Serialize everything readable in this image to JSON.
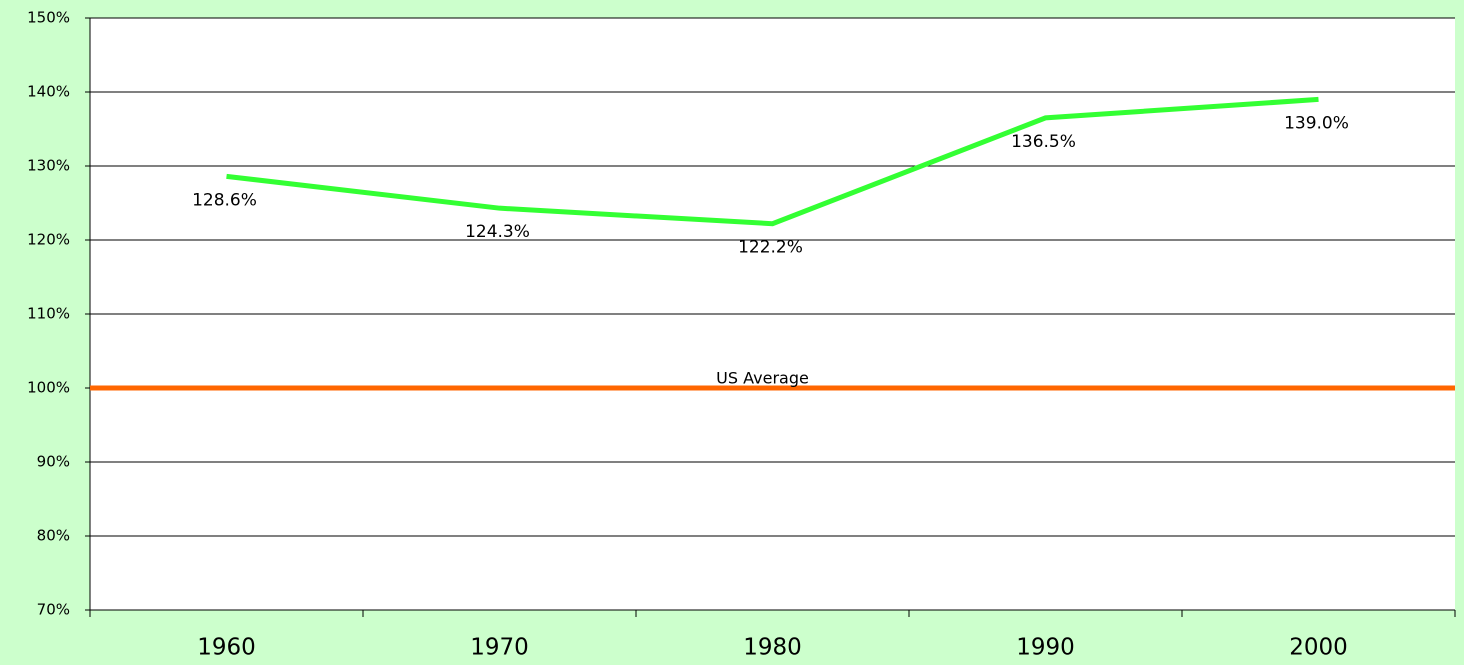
{
  "chart_data": {
    "type": "line",
    "categories": [
      "1960",
      "1970",
      "1980",
      "1990",
      "2000"
    ],
    "series": [
      {
        "color": "#33ff33",
        "values": [
          128.6,
          124.3,
          122.2,
          136.5,
          139.0
        ],
        "value_labels": [
          "128.6%",
          "124.3%",
          "122.2%",
          "136.5%",
          "139.0%"
        ]
      }
    ],
    "reference_lines": [
      {
        "value": 100,
        "label": "US Average",
        "color": "#ff6600"
      }
    ],
    "ylim": [
      70,
      150
    ],
    "yticks": [
      {
        "value": 70,
        "label": "70%"
      },
      {
        "value": 80,
        "label": "80%"
      },
      {
        "value": 90,
        "label": "90%"
      },
      {
        "value": 100,
        "label": "100%"
      },
      {
        "value": 110,
        "label": "110%"
      },
      {
        "value": 120,
        "label": "120%"
      },
      {
        "value": 130,
        "label": "130%"
      },
      {
        "value": 140,
        "label": "140%"
      },
      {
        "value": 150,
        "label": "150%"
      }
    ],
    "grid": true
  }
}
